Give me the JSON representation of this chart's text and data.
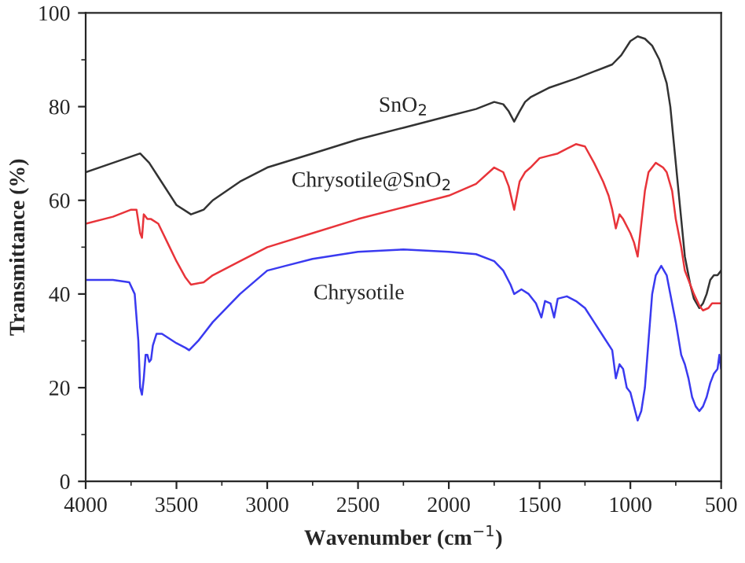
{
  "chart_data": {
    "type": "line",
    "xlabel": "Wavenumber (cm$^{−1}$)",
    "ylabel": "Transmittance (%)",
    "xlim": [
      4000,
      500
    ],
    "xticks": [
      4000,
      3500,
      3000,
      2500,
      2000,
      1500,
      1000,
      500
    ],
    "ylim": [
      0,
      100
    ],
    "yticks": [
      0,
      20,
      40,
      60,
      80,
      100
    ],
    "grid": false,
    "legend": false,
    "marker": "none",
    "line_style": "solid",
    "series": [
      {
        "name": "SnO$_{2}$",
        "color": "#333333",
        "x": [
          4000,
          3850,
          3700,
          3650,
          3600,
          3500,
          3420,
          3350,
          3300,
          3150,
          3000,
          2750,
          2500,
          2250,
          2000,
          1850,
          1750,
          1700,
          1670,
          1640,
          1610,
          1580,
          1550,
          1450,
          1300,
          1200,
          1100,
          1050,
          1000,
          960,
          920,
          880,
          840,
          800,
          780,
          760,
          730,
          700,
          670,
          650,
          620,
          600,
          580,
          560,
          540,
          520,
          500
        ],
        "values": [
          66,
          68,
          70,
          68,
          65,
          59,
          57,
          58,
          60,
          64,
          67,
          70,
          73,
          75.5,
          78,
          79.5,
          81,
          80.5,
          79,
          76.8,
          79,
          81,
          82,
          84,
          86,
          87.5,
          89,
          91,
          94,
          95,
          94.5,
          93,
          90,
          85,
          80,
          72,
          60,
          48,
          42,
          39,
          37,
          38,
          40,
          43,
          44,
          44,
          45
        ]
      },
      {
        "name": "Chrysotile@SnO$_{2}$",
        "color": "#e8343a",
        "x": [
          4000,
          3850,
          3750,
          3720,
          3700,
          3690,
          3680,
          3660,
          3640,
          3600,
          3550,
          3500,
          3450,
          3420,
          3350,
          3300,
          3150,
          3000,
          2750,
          2500,
          2250,
          2000,
          1850,
          1750,
          1700,
          1670,
          1640,
          1610,
          1580,
          1550,
          1500,
          1450,
          1400,
          1350,
          1300,
          1250,
          1200,
          1150,
          1120,
          1100,
          1080,
          1060,
          1040,
          1000,
          980,
          960,
          940,
          920,
          900,
          860,
          820,
          800,
          770,
          750,
          720,
          700,
          670,
          650,
          620,
          600,
          570,
          550,
          520,
          500
        ],
        "values": [
          55,
          56.5,
          58,
          58,
          53,
          52,
          57,
          56,
          56,
          55,
          51,
          47,
          43.5,
          42,
          42.5,
          44,
          47,
          50,
          53,
          56,
          58.5,
          61,
          63.5,
          67,
          66,
          63,
          58,
          64,
          66,
          67,
          69,
          69.5,
          70,
          71,
          72,
          71.5,
          68,
          64,
          61,
          58,
          54,
          57,
          56,
          53,
          51,
          48,
          55,
          62,
          66,
          68,
          67,
          66,
          62,
          56,
          50,
          45,
          42,
          40,
          37.5,
          36.5,
          37,
          38,
          38,
          38
        ]
      },
      {
        "name": "Chrysotile",
        "color": "#3a3af0",
        "x": [
          4000,
          3850,
          3760,
          3730,
          3710,
          3700,
          3690,
          3680,
          3670,
          3660,
          3650,
          3640,
          3630,
          3610,
          3580,
          3500,
          3450,
          3430,
          3380,
          3300,
          3150,
          3000,
          2900,
          2750,
          2500,
          2250,
          2000,
          1850,
          1750,
          1700,
          1660,
          1640,
          1600,
          1560,
          1520,
          1490,
          1470,
          1440,
          1420,
          1400,
          1350,
          1300,
          1250,
          1200,
          1150,
          1100,
          1080,
          1060,
          1040,
          1020,
          1000,
          980,
          960,
          940,
          920,
          900,
          880,
          860,
          830,
          800,
          780,
          750,
          720,
          700,
          680,
          660,
          640,
          620,
          600,
          580,
          560,
          540,
          520,
          510,
          500
        ],
        "values": [
          43,
          43,
          42.5,
          40,
          30,
          20,
          18.5,
          22,
          27,
          27,
          25.5,
          26,
          29,
          31.5,
          31.5,
          29.5,
          28.5,
          28,
          30,
          34,
          40,
          45,
          46,
          47.5,
          49,
          49.5,
          49,
          48.5,
          47,
          45,
          42,
          40,
          41,
          40,
          38,
          35,
          38.5,
          38,
          35,
          39,
          39.5,
          38.5,
          37,
          34,
          31,
          28,
          22,
          25,
          24,
          20,
          19,
          16,
          13,
          15,
          20,
          30,
          40,
          44,
          46,
          44,
          40,
          34,
          27,
          25,
          22,
          18,
          16,
          15,
          16,
          18,
          21,
          23,
          24,
          27,
          24
        ]
      }
    ]
  }
}
